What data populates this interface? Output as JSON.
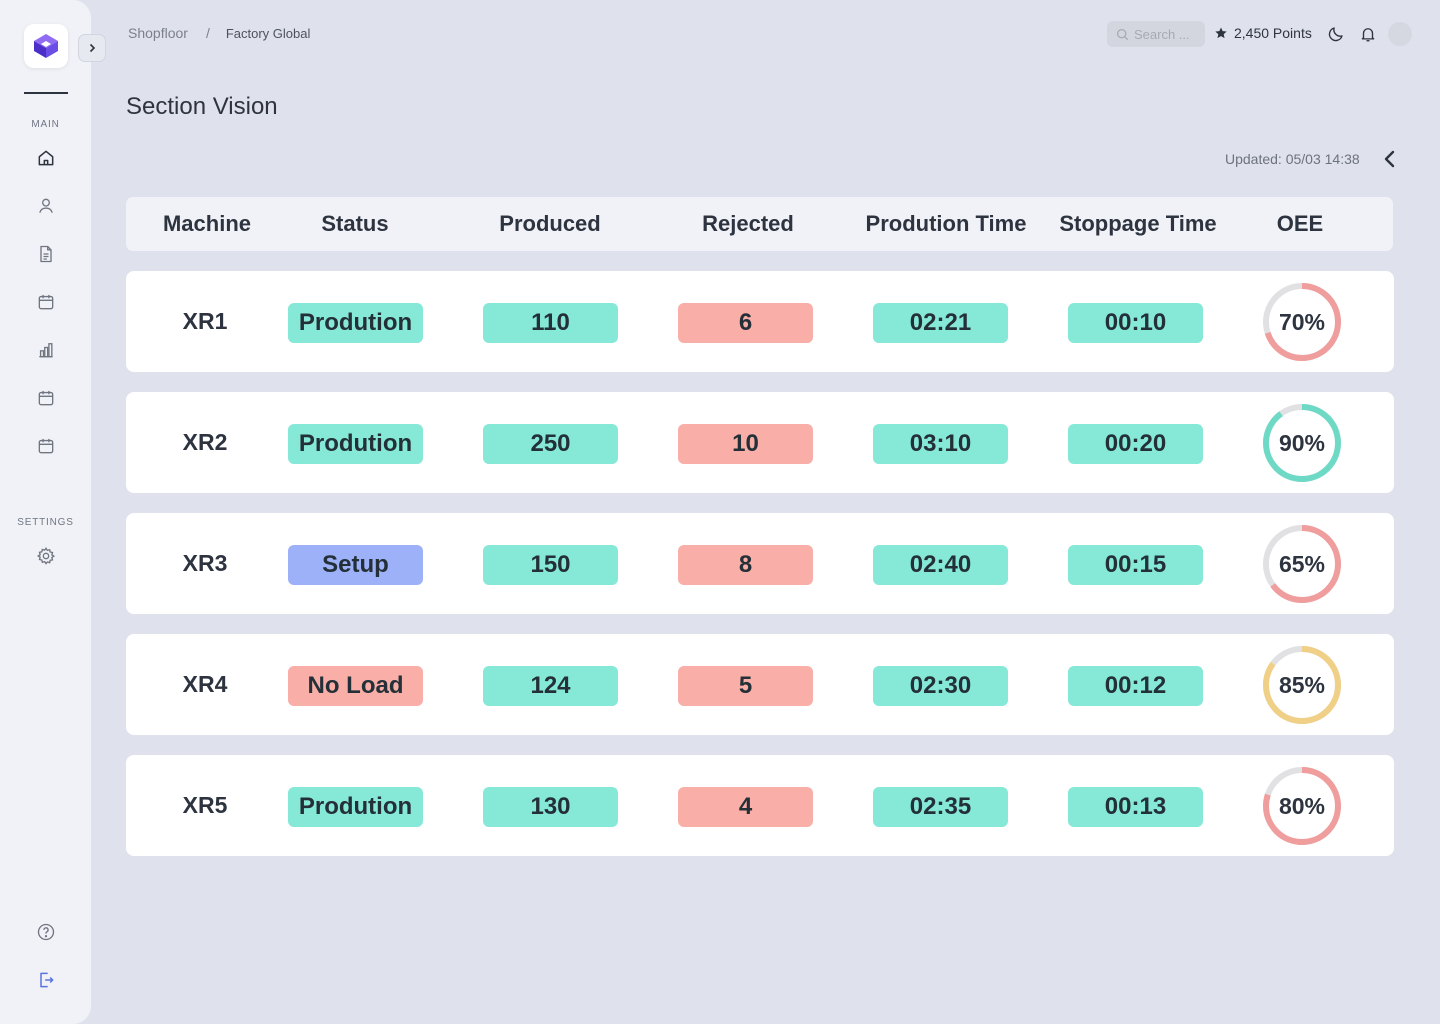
{
  "colors": {
    "brand": "#6b4ee6",
    "green": "#86e8d7",
    "red": "#f9aea8",
    "blue": "#9db1f9",
    "ring_track": "#e1e1e3",
    "ring_red": "#ef9e9d",
    "ring_green": "#6edac6",
    "ring_yellow": "#f0cf86"
  },
  "sidebar": {
    "logo_icon": "cube-logo-icon",
    "collapse_icon": "chevron-right-icon",
    "main_label": "MAIN",
    "settings_label": "SETTINGS",
    "main_items": [
      "home-icon",
      "user-icon",
      "document-icon",
      "calendar-icon",
      "bar-chart-icon",
      "calendar-icon",
      "calendar-icon"
    ],
    "settings_items": [
      "gear-icon"
    ],
    "bottom_items": [
      "help-icon",
      "logout-icon"
    ]
  },
  "header": {
    "breadcrumb": [
      "Shopfloor",
      "Factory Global"
    ],
    "breadcrumb_sep": "/",
    "search_placeholder": "Search ...",
    "points": "2,450 Points",
    "icons": [
      "star-icon",
      "moon-icon",
      "bell-icon",
      "avatar"
    ]
  },
  "page": {
    "title": "Section Vision",
    "updated": "Updated: 05/03 14:38",
    "back_icon": "chevron-left-icon"
  },
  "table": {
    "columns": [
      "Machine",
      "Status",
      "Produced",
      "Rejected",
      "Prodution Time",
      "Stoppage Time",
      "OEE"
    ],
    "rows": [
      {
        "machine": "XR1",
        "status": "Prodution",
        "status_color": "green",
        "produced": "110",
        "rejected": "6",
        "production_time": "02:21",
        "stoppage_time": "00:10",
        "oee_label": "70%",
        "oee_value": 70,
        "oee_color": "ring_red"
      },
      {
        "machine": "XR2",
        "status": "Prodution",
        "status_color": "green",
        "produced": "250",
        "rejected": "10",
        "production_time": "03:10",
        "stoppage_time": "00:20",
        "oee_label": "90%",
        "oee_value": 90,
        "oee_color": "ring_green"
      },
      {
        "machine": "XR3",
        "status": "Setup",
        "status_color": "blue",
        "produced": "150",
        "rejected": "8",
        "production_time": "02:40",
        "stoppage_time": "00:15",
        "oee_label": "65%",
        "oee_value": 65,
        "oee_color": "ring_red"
      },
      {
        "machine": "XR4",
        "status": "No Load",
        "status_color": "red",
        "produced": "124",
        "rejected": "5",
        "production_time": "02:30",
        "stoppage_time": "00:12",
        "oee_label": "85%",
        "oee_value": 85,
        "oee_color": "ring_yellow"
      },
      {
        "machine": "XR5",
        "status": "Prodution",
        "status_color": "green",
        "produced": "130",
        "rejected": "4",
        "production_time": "02:35",
        "stoppage_time": "00:13",
        "oee_label": "80%",
        "oee_value": 80,
        "oee_color": "ring_red"
      }
    ]
  }
}
